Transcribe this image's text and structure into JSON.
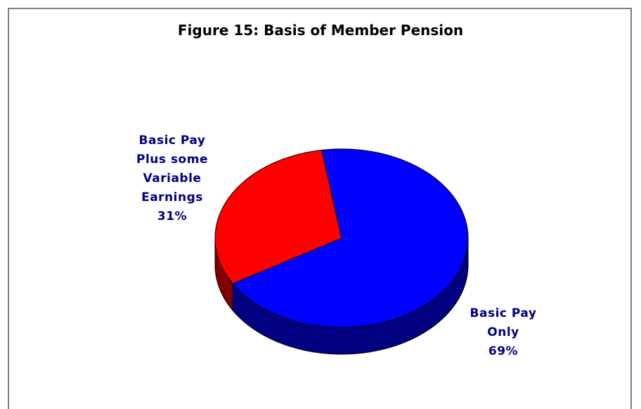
{
  "chart_data": {
    "type": "pie",
    "title": "Figure 15: Basis of Member Pension",
    "categories": [
      "Basic Pay Only",
      "Basic Pay Plus some Variable Earnings"
    ],
    "values": [
      69,
      31
    ],
    "value_labels": [
      "69%",
      "31%"
    ],
    "colors": [
      "#0000ff",
      "#ff0000"
    ],
    "label_color": "#000080"
  }
}
